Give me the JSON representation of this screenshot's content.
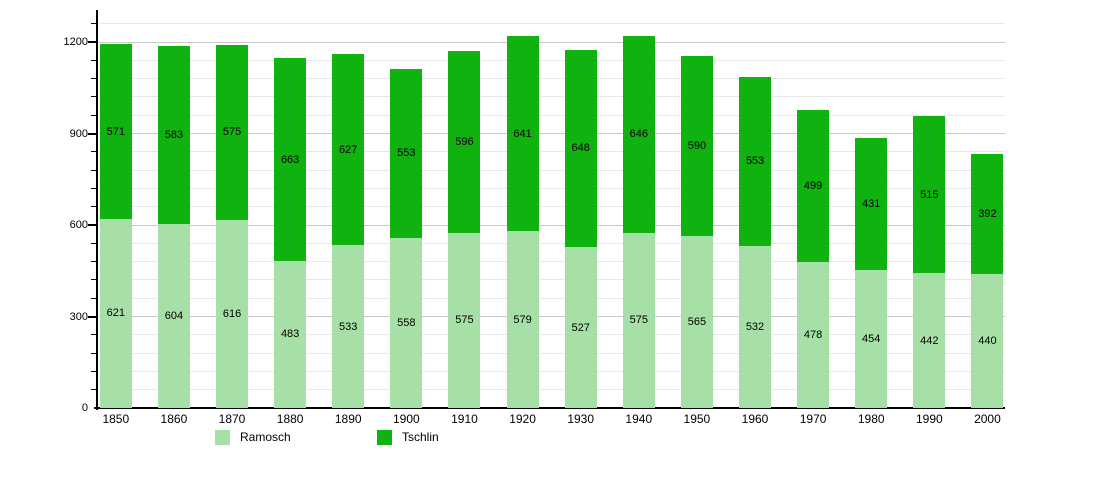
{
  "chart_data": {
    "type": "bar",
    "stacked": true,
    "title": "",
    "categories": [
      "1850",
      "1860",
      "1870",
      "1880",
      "1890",
      "1900",
      "1910",
      "1920",
      "1930",
      "1940",
      "1950",
      "1960",
      "1970",
      "1980",
      "1990",
      "2000"
    ],
    "series": [
      {
        "name": "Ramosch",
        "color": "#a6e0a6",
        "values": [
          621,
          604,
          616,
          483,
          533,
          558,
          575,
          579,
          527,
          575,
          565,
          532,
          478,
          454,
          442,
          440
        ]
      },
      {
        "name": "Tschlin",
        "color": "#0fb20f",
        "values": [
          571,
          583,
          575,
          663,
          627,
          553,
          596,
          641,
          648,
          646,
          590,
          553,
          499,
          431,
          515,
          392
        ]
      }
    ],
    "totals": [
      1192,
      1187,
      1191,
      1146,
      1160,
      1111,
      1171,
      1220,
      1175,
      1221,
      1155,
      1085,
      977,
      885,
      957,
      832
    ],
    "xlabel": "",
    "ylabel": "",
    "y_axis": {
      "tick_labels": [
        "0",
        "300",
        "600",
        "900",
        "1200"
      ],
      "major_step": 300,
      "minor_step": 60,
      "min": 0,
      "max": 1300
    },
    "grid": true,
    "legend_position": "bottom",
    "value_labels": "centered-in-segment"
  },
  "colors": {
    "background": "#ffffff",
    "axis": "#000000",
    "grid_major": "#c8c8c8",
    "grid_minor": "#e7e7e7",
    "text": "#000000",
    "ramosch": "#a6e0a6",
    "tschlin": "#0fb20f"
  }
}
